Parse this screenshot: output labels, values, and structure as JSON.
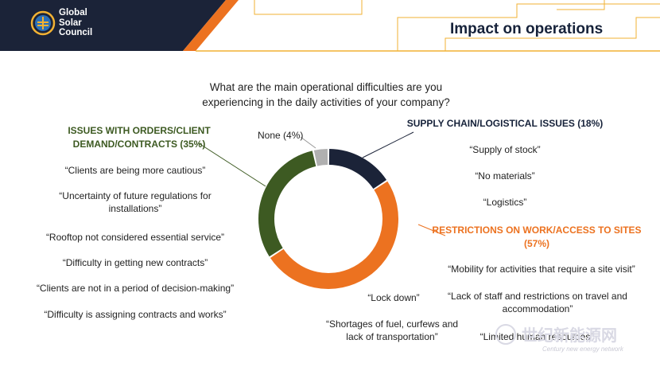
{
  "header": {
    "logo_lines": [
      "Global",
      "Solar",
      "Council"
    ],
    "title": "Impact on operations"
  },
  "question": "What are the main operational difficulties are you experiencing in the daily activities of your company?",
  "chart_data": {
    "type": "pie",
    "donut": true,
    "slices": [
      {
        "label": "SUPPLY CHAIN/LOGISTICAL ISSUES (18%)",
        "value": 18,
        "color": "#1b2338"
      },
      {
        "label": "RESTRICTIONS ON WORK/ACCESS TO SITES (57%)",
        "value": 57,
        "color": "#ec7220"
      },
      {
        "label": "ISSUES WITH ORDERS/CLIENT DEMAND/CONTRACTS (35%)",
        "value": 35,
        "color": "#3d5a22"
      },
      {
        "label": "None (4%)",
        "value": 4,
        "color": "#b0b0b0"
      }
    ]
  },
  "categories": {
    "orders": {
      "title_line1": "ISSUES WITH ORDERS/CLIENT",
      "title_line2": "DEMAND/CONTRACTS (35%)",
      "quotes": [
        "“Clients are being more cautious”",
        "“Uncertainty of future regulations for installations”",
        "“Rooftop not considered essential service”",
        "“Difficulty in getting new contracts”",
        "“Clients are not in a period of decision-making”",
        "“Difficulty is assigning contracts and works”"
      ]
    },
    "supply": {
      "title": "SUPPLY CHAIN/LOGISTICAL ISSUES (18%)",
      "quotes": [
        "“Supply of stock”",
        "“No materials”",
        "“Logistics”"
      ]
    },
    "restrictions": {
      "title_line1": "RESTRICTIONS ON WORK/ACCESS TO SITES",
      "title_line2": "(57%)",
      "quotes": [
        "“Mobility for activities that require a site visit”",
        "“Lack of staff and restrictions on travel and accommodation”",
        "“Limited human resources”",
        "“Lock down”",
        "“Shortages of fuel, curfews and lack of transportation”"
      ]
    },
    "none_label": "None (4%)"
  },
  "watermark": {
    "text": "世纪新能源网",
    "subtext": "Century new energy network"
  },
  "colors": {
    "navy": "#16223a",
    "orange": "#ec7220",
    "green": "#3d5a22",
    "gray": "#b0b0b0"
  }
}
